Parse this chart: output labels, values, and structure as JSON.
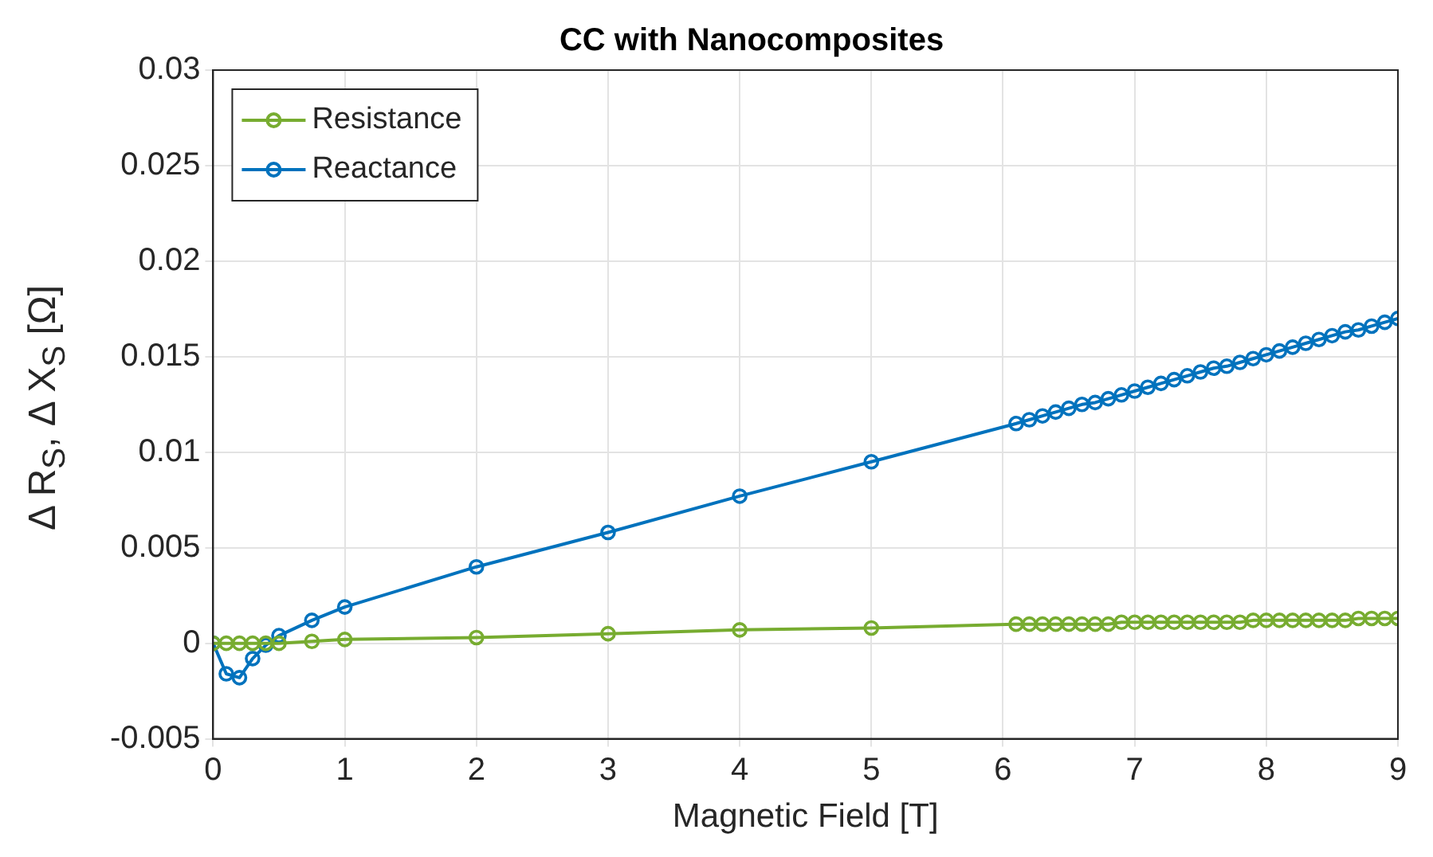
{
  "chart_data": {
    "type": "line",
    "title": "CC with Nanocomposites",
    "xlabel": "Magnetic Field [T]",
    "ylabel": "Δ R$_{S}$, Δ X$_{S}$ [Ω]",
    "x": [
      0,
      0.1,
      0.2,
      0.3,
      0.4,
      0.5,
      0.75,
      1,
      2,
      3,
      4,
      5,
      6.1,
      6.2,
      6.3,
      6.4,
      6.5,
      6.6,
      6.7,
      6.8,
      6.9,
      7.0,
      7.1,
      7.2,
      7.3,
      7.4,
      7.5,
      7.6,
      7.7,
      7.8,
      7.9,
      8.0,
      8.1,
      8.2,
      8.3,
      8.4,
      8.5,
      8.6,
      8.7,
      8.8,
      8.9,
      9.0
    ],
    "series": [
      {
        "name": "Resistance",
        "color": "#77ac30",
        "values": [
          0,
          0,
          0,
          0,
          0,
          0,
          0.0001,
          0.0002,
          0.0003,
          0.0005,
          0.0007,
          0.0008,
          0.001,
          0.001,
          0.001,
          0.001,
          0.001,
          0.001,
          0.001,
          0.001,
          0.0011,
          0.0011,
          0.0011,
          0.0011,
          0.0011,
          0.0011,
          0.0011,
          0.0011,
          0.0011,
          0.0011,
          0.0012,
          0.0012,
          0.0012,
          0.0012,
          0.0012,
          0.0012,
          0.0012,
          0.0012,
          0.0013,
          0.0013,
          0.0013,
          0.0013
        ]
      },
      {
        "name": "Reactance",
        "color": "#0072bd",
        "values": [
          0,
          -0.0016,
          -0.0018,
          -0.0008,
          -0.0001,
          0.0004,
          0.0012,
          0.0019,
          0.004,
          0.0058,
          0.0077,
          0.0095,
          0.0115,
          0.0117,
          0.0119,
          0.0121,
          0.0123,
          0.0125,
          0.0126,
          0.0128,
          0.013,
          0.0132,
          0.0134,
          0.0136,
          0.0138,
          0.014,
          0.0142,
          0.0144,
          0.0145,
          0.0147,
          0.0149,
          0.0151,
          0.0153,
          0.0155,
          0.0157,
          0.0159,
          0.0161,
          0.0163,
          0.0164,
          0.0166,
          0.0168,
          0.017
        ]
      }
    ],
    "xlim": [
      0,
      9
    ],
    "xticks": [
      0,
      1,
      2,
      3,
      4,
      5,
      6,
      7,
      8,
      9
    ],
    "ylim": [
      -0.005,
      0.03
    ],
    "yticks": [
      -0.005,
      0,
      0.005,
      0.01,
      0.015,
      0.02,
      0.025,
      0.03
    ],
    "grid": true,
    "legend": "top left",
    "marker": "circle",
    "line_style": "solid"
  }
}
